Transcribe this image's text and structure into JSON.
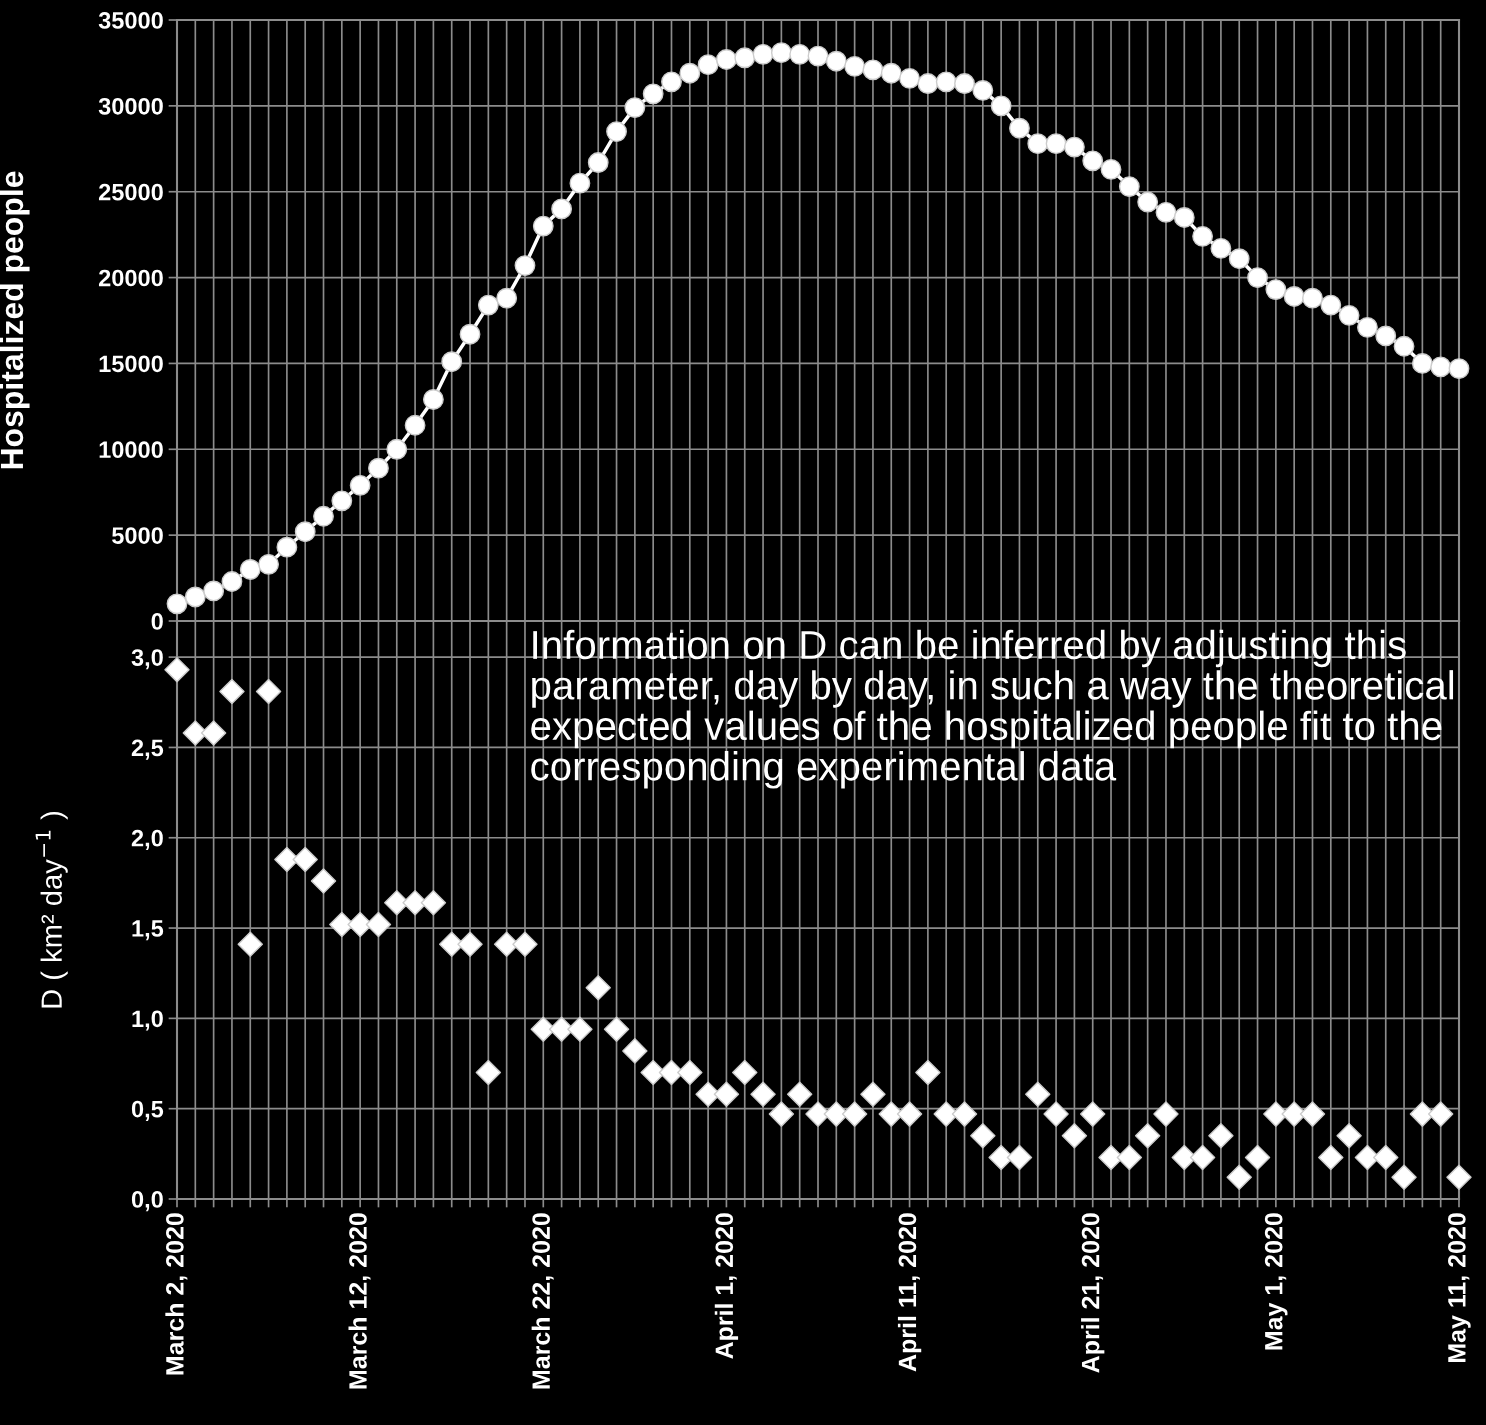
{
  "chart_data": [
    {
      "type": "line",
      "ylabel": "Hospitalized people",
      "ylim": [
        0,
        35000
      ],
      "yticks": [
        0,
        5000,
        10000,
        15000,
        20000,
        25000,
        30000,
        35000
      ],
      "grid": true,
      "tick_labels": "y",
      "marker": "circle",
      "line_style": "solid",
      "xlim": [
        "2020-03-02",
        "2020-05-11"
      ],
      "xticks": [
        {
          "value": "2020-03-02",
          "label": null
        },
        {
          "value": "2020-03-03",
          "label": null
        },
        {
          "value": "2020-03-04",
          "label": null
        },
        {
          "value": "2020-03-05",
          "label": null
        },
        {
          "value": "2020-03-06",
          "label": null
        },
        {
          "value": "2020-03-07",
          "label": null
        },
        {
          "value": "2020-03-08",
          "label": null
        },
        {
          "value": "2020-03-09",
          "label": null
        },
        {
          "value": "2020-03-10",
          "label": null
        },
        {
          "value": "2020-03-11",
          "label": null
        },
        {
          "value": "2020-03-12",
          "label": null
        },
        {
          "value": "2020-03-13",
          "label": null
        },
        {
          "value": "2020-03-14",
          "label": null
        },
        {
          "value": "2020-03-15",
          "label": null
        },
        {
          "value": "2020-03-16",
          "label": null
        },
        {
          "value": "2020-03-17",
          "label": null
        },
        {
          "value": "2020-03-18",
          "label": null
        },
        {
          "value": "2020-03-19",
          "label": null
        },
        {
          "value": "2020-03-20",
          "label": null
        },
        {
          "value": "2020-03-21",
          "label": null
        },
        {
          "value": "2020-03-22",
          "label": null
        },
        {
          "value": "2020-03-23",
          "label": null
        },
        {
          "value": "2020-03-24",
          "label": null
        },
        {
          "value": "2020-03-25",
          "label": null
        },
        {
          "value": "2020-03-26",
          "label": null
        },
        {
          "value": "2020-03-27",
          "label": null
        },
        {
          "value": "2020-03-28",
          "label": null
        },
        {
          "value": "2020-03-29",
          "label": null
        },
        {
          "value": "2020-03-30",
          "label": null
        },
        {
          "value": "2020-03-31",
          "label": null
        },
        {
          "value": "2020-04-01",
          "label": null
        },
        {
          "value": "2020-04-02",
          "label": null
        },
        {
          "value": "2020-04-03",
          "label": null
        },
        {
          "value": "2020-04-04",
          "label": null
        },
        {
          "value": "2020-04-05",
          "label": null
        },
        {
          "value": "2020-04-06",
          "label": null
        },
        {
          "value": "2020-04-07",
          "label": null
        },
        {
          "value": "2020-04-08",
          "label": null
        },
        {
          "value": "2020-04-09",
          "label": null
        },
        {
          "value": "2020-04-10",
          "label": null
        },
        {
          "value": "2020-04-11",
          "label": null
        },
        {
          "value": "2020-04-12",
          "label": null
        },
        {
          "value": "2020-04-13",
          "label": null
        },
        {
          "value": "2020-04-14",
          "label": null
        },
        {
          "value": "2020-04-15",
          "label": null
        },
        {
          "value": "2020-04-16",
          "label": null
        },
        {
          "value": "2020-04-17",
          "label": null
        },
        {
          "value": "2020-04-18",
          "label": null
        },
        {
          "value": "2020-04-19",
          "label": null
        },
        {
          "value": "2020-04-20",
          "label": null
        },
        {
          "value": "2020-04-21",
          "label": null
        },
        {
          "value": "2020-04-22",
          "label": null
        },
        {
          "value": "2020-04-23",
          "label": null
        },
        {
          "value": "2020-04-24",
          "label": null
        },
        {
          "value": "2020-04-25",
          "label": null
        },
        {
          "value": "2020-04-26",
          "label": null
        },
        {
          "value": "2020-04-27",
          "label": null
        },
        {
          "value": "2020-04-28",
          "label": null
        },
        {
          "value": "2020-04-29",
          "label": null
        },
        {
          "value": "2020-04-30",
          "label": null
        },
        {
          "value": "2020-05-01",
          "label": null
        },
        {
          "value": "2020-05-02",
          "label": null
        },
        {
          "value": "2020-05-03",
          "label": null
        },
        {
          "value": "2020-05-04",
          "label": null
        },
        {
          "value": "2020-05-05",
          "label": null
        },
        {
          "value": "2020-05-06",
          "label": null
        },
        {
          "value": "2020-05-07",
          "label": null
        },
        {
          "value": "2020-05-08",
          "label": null
        },
        {
          "value": "2020-05-09",
          "label": null
        },
        {
          "value": "2020-05-10",
          "label": null
        },
        {
          "value": "2020-05-11",
          "label": null
        }
      ],
      "x": [
        "2020-03-02",
        "2020-03-03",
        "2020-03-04",
        "2020-03-05",
        "2020-03-06",
        "2020-03-07",
        "2020-03-08",
        "2020-03-09",
        "2020-03-10",
        "2020-03-11",
        "2020-03-12",
        "2020-03-13",
        "2020-03-14",
        "2020-03-15",
        "2020-03-16",
        "2020-03-17",
        "2020-03-18",
        "2020-03-19",
        "2020-03-20",
        "2020-03-21",
        "2020-03-22",
        "2020-03-23",
        "2020-03-24",
        "2020-03-25",
        "2020-03-26",
        "2020-03-27",
        "2020-03-28",
        "2020-03-29",
        "2020-03-30",
        "2020-03-31",
        "2020-04-01",
        "2020-04-02",
        "2020-04-03",
        "2020-04-04",
        "2020-04-05",
        "2020-04-06",
        "2020-04-07",
        "2020-04-08",
        "2020-04-09",
        "2020-04-10",
        "2020-04-11",
        "2020-04-12",
        "2020-04-13",
        "2020-04-14",
        "2020-04-15",
        "2020-04-16",
        "2020-04-17",
        "2020-04-18",
        "2020-04-19",
        "2020-04-20",
        "2020-04-21",
        "2020-04-22",
        "2020-04-23",
        "2020-04-24",
        "2020-04-25",
        "2020-04-26",
        "2020-04-27",
        "2020-04-28",
        "2020-04-29",
        "2020-04-30",
        "2020-05-01",
        "2020-05-02",
        "2020-05-03",
        "2020-05-04",
        "2020-05-05",
        "2020-05-06",
        "2020-05-07",
        "2020-05-08",
        "2020-05-09",
        "2020-05-10",
        "2020-05-11"
      ],
      "series": [
        {
          "color": "#ffffff",
          "values": [
            1000,
            1400,
            1750,
            2300,
            3000,
            3300,
            4300,
            5200,
            6100,
            7000,
            7900,
            8900,
            10000,
            11400,
            12900,
            15100,
            16700,
            18400,
            18800,
            20700,
            23000,
            24000,
            25500,
            26700,
            28500,
            29900,
            30700,
            31400,
            31900,
            32400,
            32700,
            32800,
            33000,
            33100,
            33000,
            32900,
            32600,
            32300,
            32100,
            31900,
            31600,
            31300,
            31400,
            31300,
            30900,
            30000,
            28700,
            27800,
            27800,
            27600,
            26800,
            26300,
            25300,
            24400,
            23800,
            23500,
            22400,
            21700,
            21100,
            20000,
            19300,
            18900,
            18800,
            18400,
            17800,
            17100,
            16600,
            16000,
            15000,
            14800,
            14700
          ]
        }
      ]
    },
    {
      "type": "scatter",
      "ylabel": "D ( km² day$^{−1}$ )",
      "ylim": [
        0,
        3.2
      ],
      "yticks": [
        {
          "value": 0,
          "label": "0,0"
        },
        {
          "value": 0.5,
          "label": "0,5"
        },
        {
          "value": 1,
          "label": "1,0"
        },
        {
          "value": 1.5,
          "label": "1,5"
        },
        {
          "value": 2,
          "label": "2,0"
        },
        {
          "value": 2.5,
          "label": "2,5"
        },
        {
          "value": 3,
          "label": "3,0"
        }
      ],
      "grid": true,
      "marker": "diamond",
      "annotations": [
        "Information on D can be inferred by adjusting this parameter, day by day, in such a way the theoretical expected values of the hospitalized people fit to the corresponding experimental data"
      ],
      "xlim": [
        "2020-03-02",
        "2020-05-11"
      ],
      "xticks": [
        {
          "value": "2020-03-02",
          "label": "March 2, 2020"
        },
        {
          "value": "2020-03-03",
          "label": null
        },
        {
          "value": "2020-03-04",
          "label": null
        },
        {
          "value": "2020-03-05",
          "label": null
        },
        {
          "value": "2020-03-06",
          "label": null
        },
        {
          "value": "2020-03-07",
          "label": null
        },
        {
          "value": "2020-03-08",
          "label": null
        },
        {
          "value": "2020-03-09",
          "label": null
        },
        {
          "value": "2020-03-10",
          "label": null
        },
        {
          "value": "2020-03-11",
          "label": null
        },
        {
          "value": "2020-03-12",
          "label": "March 12, 2020"
        },
        {
          "value": "2020-03-13",
          "label": null
        },
        {
          "value": "2020-03-14",
          "label": null
        },
        {
          "value": "2020-03-15",
          "label": null
        },
        {
          "value": "2020-03-16",
          "label": null
        },
        {
          "value": "2020-03-17",
          "label": null
        },
        {
          "value": "2020-03-18",
          "label": null
        },
        {
          "value": "2020-03-19",
          "label": null
        },
        {
          "value": "2020-03-20",
          "label": null
        },
        {
          "value": "2020-03-21",
          "label": null
        },
        {
          "value": "2020-03-22",
          "label": "March 22, 2020"
        },
        {
          "value": "2020-03-23",
          "label": null
        },
        {
          "value": "2020-03-24",
          "label": null
        },
        {
          "value": "2020-03-25",
          "label": null
        },
        {
          "value": "2020-03-26",
          "label": null
        },
        {
          "value": "2020-03-27",
          "label": null
        },
        {
          "value": "2020-03-28",
          "label": null
        },
        {
          "value": "2020-03-29",
          "label": null
        },
        {
          "value": "2020-03-30",
          "label": null
        },
        {
          "value": "2020-03-31",
          "label": null
        },
        {
          "value": "2020-04-01",
          "label": "April 1, 2020"
        },
        {
          "value": "2020-04-02",
          "label": null
        },
        {
          "value": "2020-04-03",
          "label": null
        },
        {
          "value": "2020-04-04",
          "label": null
        },
        {
          "value": "2020-04-05",
          "label": null
        },
        {
          "value": "2020-04-06",
          "label": null
        },
        {
          "value": "2020-04-07",
          "label": null
        },
        {
          "value": "2020-04-08",
          "label": null
        },
        {
          "value": "2020-04-09",
          "label": null
        },
        {
          "value": "2020-04-10",
          "label": null
        },
        {
          "value": "2020-04-11",
          "label": "April 11, 2020"
        },
        {
          "value": "2020-04-12",
          "label": null
        },
        {
          "value": "2020-04-13",
          "label": null
        },
        {
          "value": "2020-04-14",
          "label": null
        },
        {
          "value": "2020-04-15",
          "label": null
        },
        {
          "value": "2020-04-16",
          "label": null
        },
        {
          "value": "2020-04-17",
          "label": null
        },
        {
          "value": "2020-04-18",
          "label": null
        },
        {
          "value": "2020-04-19",
          "label": null
        },
        {
          "value": "2020-04-20",
          "label": null
        },
        {
          "value": "2020-04-21",
          "label": "April 21, 2020"
        },
        {
          "value": "2020-04-22",
          "label": null
        },
        {
          "value": "2020-04-23",
          "label": null
        },
        {
          "value": "2020-04-24",
          "label": null
        },
        {
          "value": "2020-04-25",
          "label": null
        },
        {
          "value": "2020-04-26",
          "label": null
        },
        {
          "value": "2020-04-27",
          "label": null
        },
        {
          "value": "2020-04-28",
          "label": null
        },
        {
          "value": "2020-04-29",
          "label": null
        },
        {
          "value": "2020-04-30",
          "label": null
        },
        {
          "value": "2020-05-01",
          "label": "May 1, 2020"
        },
        {
          "value": "2020-05-02",
          "label": null
        },
        {
          "value": "2020-05-03",
          "label": null
        },
        {
          "value": "2020-05-04",
          "label": null
        },
        {
          "value": "2020-05-05",
          "label": null
        },
        {
          "value": "2020-05-06",
          "label": null
        },
        {
          "value": "2020-05-07",
          "label": null
        },
        {
          "value": "2020-05-08",
          "label": null
        },
        {
          "value": "2020-05-09",
          "label": null
        },
        {
          "value": "2020-05-10",
          "label": null
        },
        {
          "value": "2020-05-11",
          "label": "May 11, 2020"
        }
      ],
      "x": [
        "2020-03-02",
        "2020-03-03",
        "2020-03-04",
        "2020-03-05",
        "2020-03-06",
        "2020-03-07",
        "2020-03-08",
        "2020-03-09",
        "2020-03-10",
        "2020-03-11",
        "2020-03-12",
        "2020-03-13",
        "2020-03-14",
        "2020-03-15",
        "2020-03-16",
        "2020-03-17",
        "2020-03-18",
        "2020-03-19",
        "2020-03-20",
        "2020-03-21",
        "2020-03-22",
        "2020-03-23",
        "2020-03-24",
        "2020-03-25",
        "2020-03-26",
        "2020-03-27",
        "2020-03-28",
        "2020-03-29",
        "2020-03-30",
        "2020-03-31",
        "2020-04-01",
        "2020-04-02",
        "2020-04-03",
        "2020-04-04",
        "2020-04-05",
        "2020-04-06",
        "2020-04-07",
        "2020-04-08",
        "2020-04-09",
        "2020-04-10",
        "2020-04-11",
        "2020-04-12",
        "2020-04-13",
        "2020-04-14",
        "2020-04-15",
        "2020-04-16",
        "2020-04-17",
        "2020-04-18",
        "2020-04-19",
        "2020-04-20",
        "2020-04-21",
        "2020-04-22",
        "2020-04-23",
        "2020-04-24",
        "2020-04-25",
        "2020-04-26",
        "2020-04-27",
        "2020-04-28",
        "2020-04-29",
        "2020-04-30",
        "2020-05-01",
        "2020-05-02",
        "2020-05-03",
        "2020-05-04",
        "2020-05-05",
        "2020-05-06",
        "2020-05-07",
        "2020-05-08",
        "2020-05-09",
        "2020-05-10",
        "2020-05-11"
      ],
      "series": [
        {
          "color": "#ffffff",
          "values": [
            2.93,
            2.58,
            2.58,
            2.81,
            1.41,
            2.81,
            1.88,
            1.88,
            1.76,
            1.52,
            1.52,
            1.52,
            1.64,
            1.64,
            1.64,
            1.41,
            1.41,
            0.7,
            1.41,
            1.41,
            0.94,
            0.94,
            0.94,
            1.17,
            0.94,
            0.82,
            0.7,
            0.7,
            0.7,
            0.58,
            0.58,
            0.7,
            0.58,
            0.47,
            0.58,
            0.47,
            0.47,
            0.47,
            0.58,
            0.47,
            0.47,
            0.7,
            0.47,
            0.47,
            0.35,
            0.23,
            0.23,
            0.58,
            0.47,
            0.35,
            0.47,
            0.23,
            0.23,
            0.35,
            0.47,
            0.23,
            0.23,
            0.35,
            0.12,
            0.23,
            0.47,
            0.47,
            0.47,
            0.23,
            0.35,
            0.23,
            0.23,
            0.12,
            0.47,
            0.47,
            0.12
          ]
        }
      ]
    }
  ]
}
